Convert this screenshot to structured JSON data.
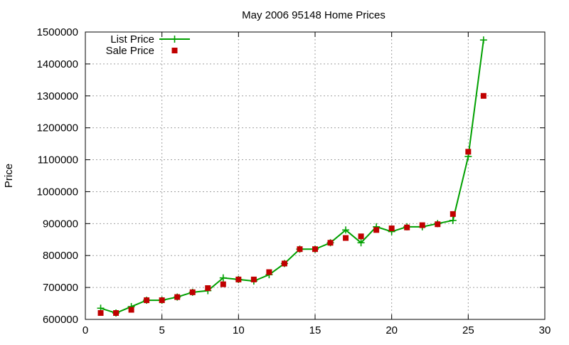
{
  "chart_data": {
    "type": "line",
    "title": "May 2006 95148 Home Prices",
    "xlabel": "",
    "ylabel": "Price",
    "xlim": [
      0,
      30
    ],
    "ylim": [
      600000,
      1500000
    ],
    "x_ticks": [
      0,
      5,
      10,
      15,
      20,
      25,
      30
    ],
    "y_ticks": [
      600000,
      700000,
      800000,
      900000,
      1000000,
      1100000,
      1200000,
      1300000,
      1400000,
      1500000
    ],
    "grid": true,
    "legend_position": "top-left",
    "series": [
      {
        "name": "List Price",
        "style": "linespoints",
        "marker": "plus",
        "color": "#00a000",
        "x": [
          1,
          2,
          3,
          4,
          5,
          6,
          7,
          8,
          9,
          10,
          11,
          12,
          13,
          14,
          15,
          16,
          17,
          18,
          19,
          20,
          21,
          22,
          23,
          24,
          25,
          26
        ],
        "y": [
          635000,
          620000,
          640000,
          660000,
          660000,
          670000,
          685000,
          690000,
          730000,
          725000,
          720000,
          740000,
          775000,
          820000,
          820000,
          840000,
          880000,
          840000,
          890000,
          875000,
          890000,
          890000,
          900000,
          910000,
          1110000,
          1475000
        ]
      },
      {
        "name": "Sale Price",
        "style": "points",
        "marker": "square",
        "color": "#c00000",
        "x": [
          1,
          2,
          3,
          4,
          5,
          6,
          7,
          8,
          9,
          10,
          11,
          12,
          13,
          14,
          15,
          16,
          17,
          18,
          19,
          20,
          21,
          22,
          23,
          24,
          25,
          26
        ],
        "y": [
          620000,
          620000,
          630000,
          660000,
          660000,
          670000,
          685000,
          698000,
          710000,
          725000,
          725000,
          748000,
          775000,
          820000,
          820000,
          840000,
          855000,
          860000,
          880000,
          885000,
          888000,
          895000,
          898000,
          930000,
          1125000,
          1300000
        ]
      }
    ]
  }
}
